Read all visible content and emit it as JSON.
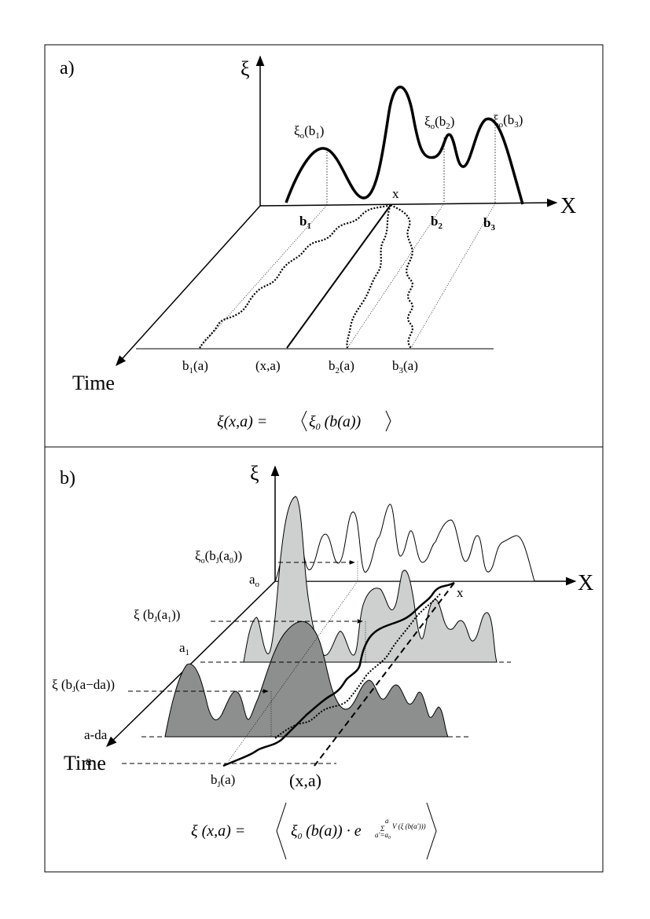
{
  "panel_a": {
    "label": "a)",
    "y_axis": "ξ",
    "x_axis": "X",
    "time_axis": "Time",
    "point_x": "x",
    "peak_labels": [
      {
        "base": "ξ",
        "sub_o": "o",
        "arg": "(b",
        "idx": "1",
        "close": ")"
      },
      {
        "base": "ξ",
        "sub_o": "o",
        "arg": "(b",
        "idx": "2",
        "close": ")"
      },
      {
        "base": "ξ",
        "sub_o": "o",
        "arg": "(b",
        "idx": "3",
        "close": ")"
      }
    ],
    "axis_points": [
      {
        "b": "b",
        "i": "1"
      },
      {
        "b": "b",
        "i": "2"
      },
      {
        "b": "b",
        "i": "3"
      }
    ],
    "bottom_labels": [
      {
        "b": "b",
        "i": "1",
        "rest": "(a)"
      },
      {
        "text": "(x,a)"
      },
      {
        "b": "b",
        "i": "2",
        "rest": "(a)"
      },
      {
        "b": "b",
        "i": "3",
        "rest": "(a)"
      }
    ],
    "equation": {
      "lhs": "ξ(x,a) = ",
      "xi": "ξ",
      "sub": "0",
      "arg": " (b(a))"
    }
  },
  "panel_b": {
    "label": "b)",
    "y_axis": "ξ",
    "x_axis": "X",
    "time_axis": "Time",
    "point_x": "x",
    "row_labels": [
      {
        "base": "a",
        "sub": "o"
      },
      {
        "base": "a",
        "sub": "1"
      },
      {
        "base": "a-da",
        "sub": ""
      },
      {
        "base": "a",
        "sub": ""
      }
    ],
    "arrow_labels": [
      {
        "pre": "ξ",
        "sub_o": "o",
        "open": "(b",
        "j": "J",
        "arg": "(a",
        "sub2": "0",
        "close": "))"
      },
      {
        "pre": "ξ",
        "sub_o": "",
        "open": " (b",
        "j": "J",
        "arg": "(a",
        "sub2": "1",
        "close": "))"
      },
      {
        "pre": "ξ",
        "sub_o": "",
        "open": " (b",
        "j": "J",
        "arg": "(a−da))",
        "sub2": "",
        "close": ""
      }
    ],
    "bottom_labels": [
      {
        "b": "b",
        "j": "J",
        "rest": "(a)"
      },
      {
        "text": "(x,a)"
      }
    ],
    "equation": {
      "lhs": "ξ (x,a) = ",
      "xi0": "ξ",
      "sub0": "0",
      "mid": " (b(a)) · e",
      "sum_sym": "Σ",
      "sum_top": "a",
      "sum_bottom": "a'=a",
      "sum_bottom_sub": "0",
      "sum_term": "V (ξ (b(a')))"
    }
  }
}
